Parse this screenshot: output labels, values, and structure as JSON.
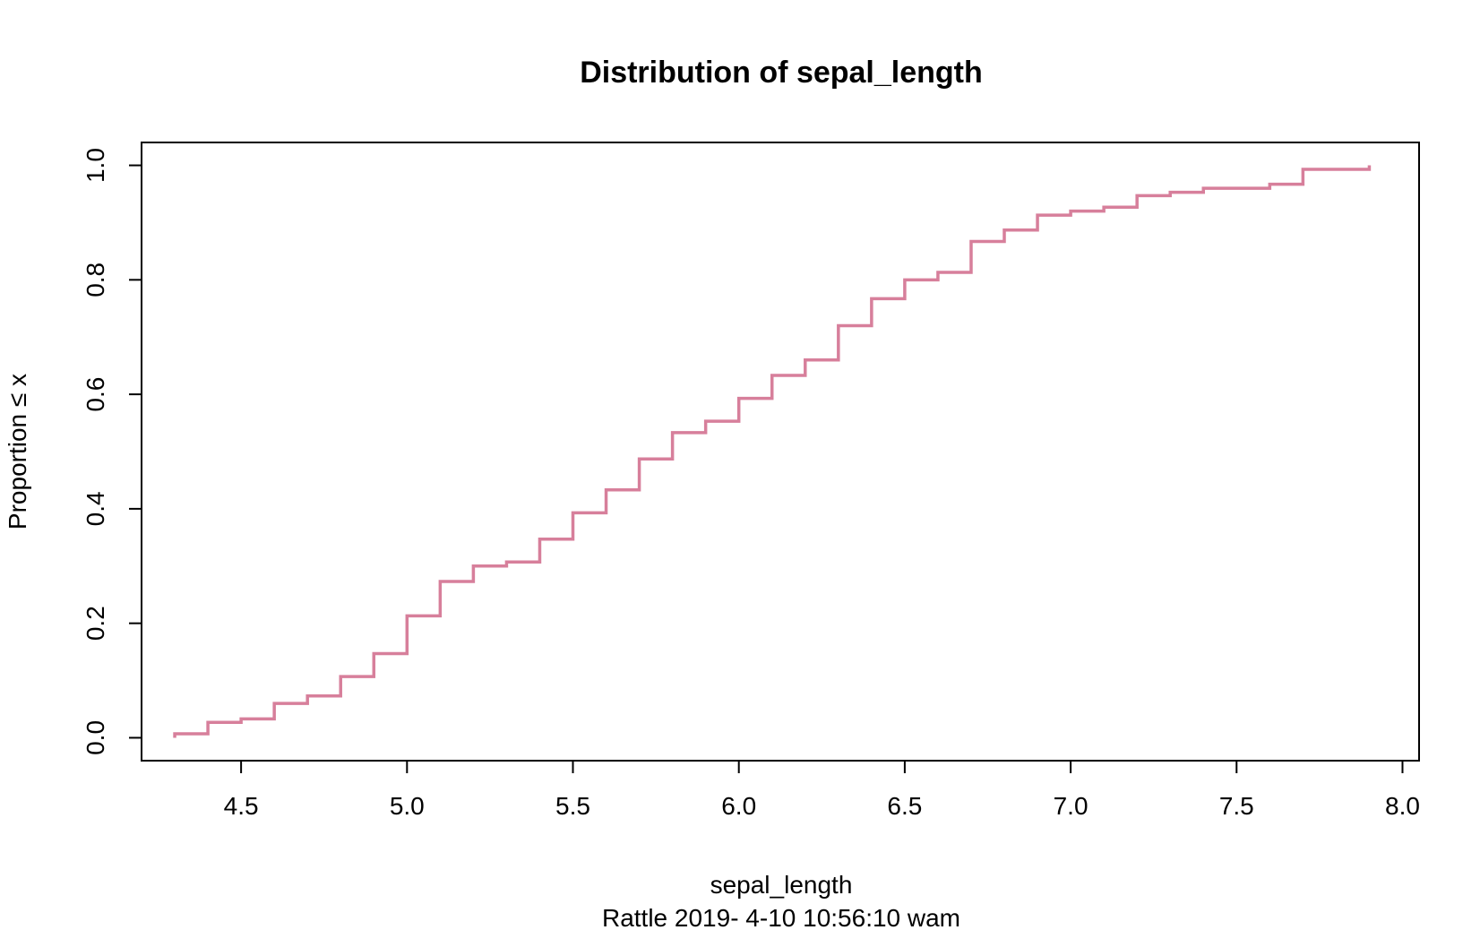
{
  "chart_data": {
    "type": "line",
    "step": true,
    "title": "Distribution of sepal_length",
    "xlabel": "sepal_length",
    "ylabel": "Proportion ≤ x",
    "subtitle": "Rattle 2019- 4-10 10:56:10 wam",
    "xlim": [
      4.2,
      8.05
    ],
    "ylim": [
      -0.04,
      1.04
    ],
    "xticks": [
      4.5,
      5.0,
      5.5,
      6.0,
      6.5,
      7.0,
      7.5,
      8.0
    ],
    "xtick_labels": [
      "4.5",
      "5.0",
      "5.5",
      "6.0",
      "6.5",
      "7.0",
      "7.5",
      "8.0"
    ],
    "yticks": [
      0.0,
      0.2,
      0.4,
      0.6,
      0.8,
      1.0
    ],
    "ytick_labels": [
      "0.0",
      "0.2",
      "0.4",
      "0.6",
      "0.8",
      "1.0"
    ],
    "grid": false,
    "line_color": "#d77f9b",
    "series": [
      {
        "x": [
          4.3,
          4.4,
          4.5,
          4.6,
          4.7,
          4.8,
          4.9,
          5.0,
          5.1,
          5.2,
          5.3,
          5.4,
          5.5,
          5.6,
          5.7,
          5.8,
          5.9,
          6.0,
          6.1,
          6.2,
          6.3,
          6.4,
          6.5,
          6.6,
          6.7,
          6.8,
          6.9,
          7.0,
          7.1,
          7.2,
          7.3,
          7.4,
          7.6,
          7.7,
          7.9
        ],
        "y": [
          0.007,
          0.027,
          0.033,
          0.06,
          0.073,
          0.107,
          0.147,
          0.213,
          0.273,
          0.3,
          0.307,
          0.347,
          0.393,
          0.433,
          0.487,
          0.533,
          0.553,
          0.593,
          0.633,
          0.66,
          0.72,
          0.767,
          0.8,
          0.813,
          0.867,
          0.887,
          0.913,
          0.92,
          0.927,
          0.947,
          0.953,
          0.96,
          0.967,
          0.993,
          1.0
        ]
      }
    ]
  }
}
